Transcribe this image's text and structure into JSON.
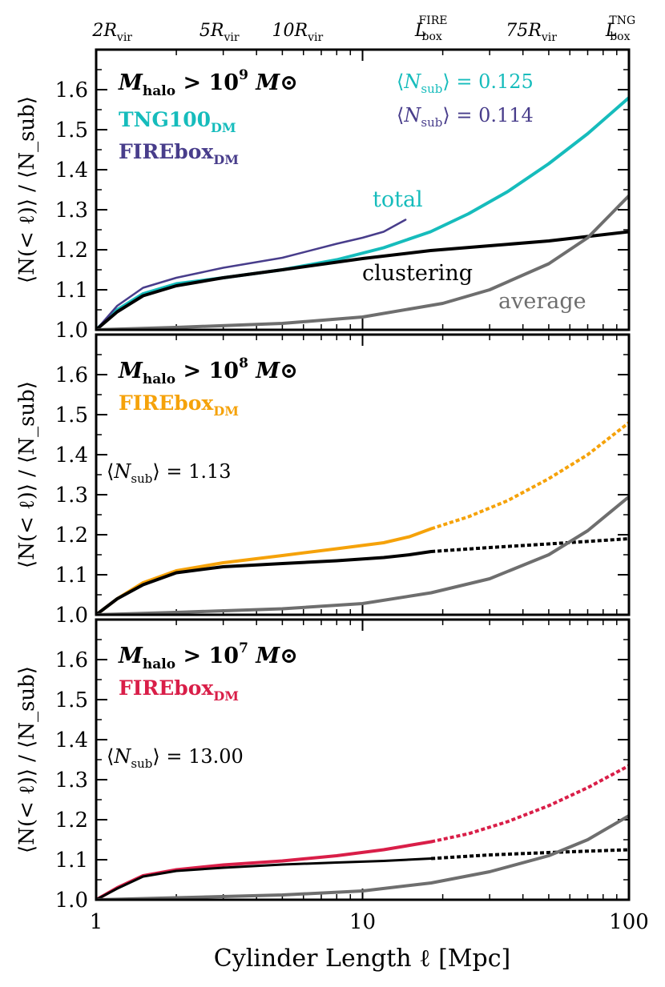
{
  "figure": {
    "xlabel": "Cylinder Length ℓ [Mpc]",
    "ylabel": "⟨N(< ℓ)⟩ / ⟨N_sub⟩",
    "top_axis_labels": [
      {
        "base": "2R",
        "sub": "vir",
        "sup": "",
        "x_mpc": 1.15
      },
      {
        "base": "5R",
        "sub": "vir",
        "sup": "",
        "x_mpc": 2.9
      },
      {
        "base": "10R",
        "sub": "vir",
        "sup": "",
        "x_mpc": 5.7
      },
      {
        "base": "L",
        "sub": "box",
        "sup": "FIRE",
        "x_mpc": 18.1
      },
      {
        "base": "75R",
        "sub": "vir",
        "sup": "",
        "x_mpc": 43
      },
      {
        "base": "L",
        "sub": "box",
        "sup": "TNG",
        "x_mpc": 93
      }
    ],
    "colors": {
      "tng": "#16bcbc",
      "firebox_1e9": "#483d8b",
      "firebox_1e8": "#f5a20a",
      "firebox_1e7": "#d91e48",
      "clustering": "#000000",
      "average": "#6e6e6e"
    }
  },
  "chart_data": [
    {
      "type": "line",
      "panel": "top",
      "title_text": {
        "pre": "M",
        "sub": "halo",
        "mid": " > 10",
        "sup": "9",
        "post": " M⊙"
      },
      "legend": [
        {
          "name": "TNG100",
          "sub": "DM",
          "color": "#16bcbc"
        },
        {
          "name": "FIREbox",
          "sub": "DM",
          "color": "#483d8b"
        }
      ],
      "nsub_labels": [
        {
          "text": "⟨N_sub⟩ = 0.125",
          "value": "0.125",
          "color": "#16bcbc"
        },
        {
          "text": "⟨N_sub⟩ = 0.114",
          "value": "0.114",
          "color": "#483d8b"
        }
      ],
      "annotations": [
        {
          "text": "total",
          "color": "#16bcbc"
        },
        {
          "text": "clustering",
          "color": "#000000"
        },
        {
          "text": "average",
          "color": "#6e6e6e"
        }
      ],
      "xscale": "log",
      "xlim": [
        1,
        100
      ],
      "ylim": [
        1.0,
        1.7
      ],
      "yticks": [
        1.0,
        1.1,
        1.2,
        1.3,
        1.4,
        1.5,
        1.6
      ],
      "xticks": [
        1,
        10,
        100
      ],
      "series": [
        {
          "name": "TNG100 total",
          "color": "#16bcbc",
          "width": 4,
          "style": "solid",
          "x": [
            1,
            1.2,
            1.5,
            2,
            3,
            5,
            8,
            12,
            18,
            25,
            35,
            50,
            70,
            100
          ],
          "y": [
            1.0,
            1.05,
            1.09,
            1.115,
            1.13,
            1.15,
            1.175,
            1.205,
            1.245,
            1.29,
            1.345,
            1.415,
            1.49,
            1.58
          ]
        },
        {
          "name": "FIREbox total",
          "color": "#483d8b",
          "width": 2.5,
          "style": "solid",
          "x": [
            1,
            1.2,
            1.5,
            2,
            3,
            5,
            8,
            10,
            12,
            14.5
          ],
          "y": [
            1.0,
            1.06,
            1.105,
            1.13,
            1.155,
            1.18,
            1.215,
            1.23,
            1.245,
            1.275
          ]
        },
        {
          "name": "clustering",
          "color": "#000000",
          "width": 4,
          "style": "solid",
          "x": [
            1,
            1.2,
            1.5,
            2,
            3,
            5,
            10,
            18,
            30,
            50,
            100
          ],
          "y": [
            1.0,
            1.045,
            1.085,
            1.11,
            1.13,
            1.15,
            1.178,
            1.198,
            1.21,
            1.222,
            1.245
          ]
        },
        {
          "name": "average",
          "color": "#6e6e6e",
          "width": 4,
          "style": "solid",
          "x": [
            1,
            2,
            5,
            10,
            20,
            30,
            50,
            70,
            100
          ],
          "y": [
            1.0,
            1.006,
            1.016,
            1.032,
            1.066,
            1.1,
            1.165,
            1.23,
            1.335
          ]
        }
      ]
    },
    {
      "type": "line",
      "panel": "middle",
      "title_text": {
        "pre": "M",
        "sub": "halo",
        "mid": " > 10",
        "sup": "8",
        "post": " M⊙"
      },
      "legend": [
        {
          "name": "FIREbox",
          "sub": "DM",
          "color": "#f5a20a"
        }
      ],
      "nsub_labels": [
        {
          "text": "⟨N_sub⟩ = 1.13",
          "value": "1.13",
          "color": "#000000"
        }
      ],
      "annotations": [],
      "xscale": "log",
      "xlim": [
        1,
        100
      ],
      "ylim": [
        1.0,
        1.7
      ],
      "yticks": [
        1.0,
        1.1,
        1.2,
        1.3,
        1.4,
        1.5,
        1.6
      ],
      "xticks": [
        1,
        10,
        100
      ],
      "series": [
        {
          "name": "FIREbox total",
          "color": "#f5a20a",
          "width": 4,
          "style": "solid",
          "x": [
            1,
            1.2,
            1.5,
            2,
            3,
            5,
            8,
            12,
            15,
            18.1
          ],
          "y": [
            1.0,
            1.04,
            1.08,
            1.11,
            1.13,
            1.148,
            1.165,
            1.18,
            1.195,
            1.215
          ]
        },
        {
          "name": "FIREbox total (extrapolated)",
          "color": "#f5a20a",
          "width": 4,
          "style": "dotted",
          "x": [
            18.1,
            25,
            35,
            50,
            70,
            100
          ],
          "y": [
            1.215,
            1.245,
            1.285,
            1.34,
            1.4,
            1.48
          ]
        },
        {
          "name": "clustering",
          "color": "#000000",
          "width": 4,
          "style": "solid",
          "x": [
            1,
            1.2,
            1.5,
            2,
            3,
            5,
            8,
            12,
            15,
            18.1
          ],
          "y": [
            1.0,
            1.04,
            1.075,
            1.105,
            1.12,
            1.128,
            1.135,
            1.143,
            1.15,
            1.158
          ]
        },
        {
          "name": "clustering (extrapolated)",
          "color": "#000000",
          "width": 4,
          "style": "dotted",
          "x": [
            18.1,
            30,
            50,
            100
          ],
          "y": [
            1.158,
            1.168,
            1.177,
            1.19
          ]
        },
        {
          "name": "average",
          "color": "#6e6e6e",
          "width": 4,
          "style": "solid",
          "x": [
            1,
            2,
            5,
            10,
            18.1,
            30,
            50,
            70,
            100
          ],
          "y": [
            1.0,
            1.006,
            1.015,
            1.028,
            1.055,
            1.09,
            1.15,
            1.21,
            1.295
          ]
        }
      ]
    },
    {
      "type": "line",
      "panel": "bottom",
      "title_text": {
        "pre": "M",
        "sub": "halo",
        "mid": " > 10",
        "sup": "7",
        "post": " M⊙"
      },
      "legend": [
        {
          "name": "FIREbox",
          "sub": "DM",
          "color": "#d91e48"
        }
      ],
      "nsub_labels": [
        {
          "text": "⟨N_sub⟩ = 13.00",
          "value": "13.00",
          "color": "#000000"
        }
      ],
      "annotations": [],
      "xscale": "log",
      "xlim": [
        1,
        100
      ],
      "ylim": [
        1.0,
        1.7
      ],
      "yticks": [
        1.0,
        1.1,
        1.2,
        1.3,
        1.4,
        1.5,
        1.6
      ],
      "xticks": [
        1,
        10,
        100
      ],
      "series": [
        {
          "name": "FIREbox total",
          "color": "#d91e48",
          "width": 4,
          "style": "solid",
          "x": [
            1,
            1.2,
            1.5,
            2,
            3,
            5,
            8,
            12,
            18.1
          ],
          "y": [
            1.0,
            1.03,
            1.06,
            1.075,
            1.087,
            1.097,
            1.11,
            1.125,
            1.145
          ]
        },
        {
          "name": "FIREbox total (extrapolated)",
          "color": "#d91e48",
          "width": 4,
          "style": "dotted",
          "x": [
            18.1,
            25,
            35,
            50,
            70,
            100
          ],
          "y": [
            1.145,
            1.165,
            1.195,
            1.235,
            1.28,
            1.335
          ]
        },
        {
          "name": "clustering",
          "color": "#000000",
          "width": 3,
          "style": "solid",
          "x": [
            1,
            1.2,
            1.5,
            2,
            3,
            5,
            8,
            12,
            18.1
          ],
          "y": [
            1.0,
            1.028,
            1.058,
            1.072,
            1.08,
            1.088,
            1.093,
            1.097,
            1.103
          ]
        },
        {
          "name": "clustering (extrapolated)",
          "color": "#000000",
          "width": 4,
          "style": "dotted",
          "x": [
            18.1,
            30,
            50,
            100
          ],
          "y": [
            1.103,
            1.112,
            1.118,
            1.125
          ]
        },
        {
          "name": "average",
          "color": "#6e6e6e",
          "width": 4,
          "style": "solid",
          "x": [
            1,
            2,
            5,
            10,
            18.1,
            30,
            50,
            70,
            100
          ],
          "y": [
            1.0,
            1.005,
            1.012,
            1.022,
            1.042,
            1.07,
            1.11,
            1.15,
            1.21
          ]
        }
      ]
    }
  ]
}
